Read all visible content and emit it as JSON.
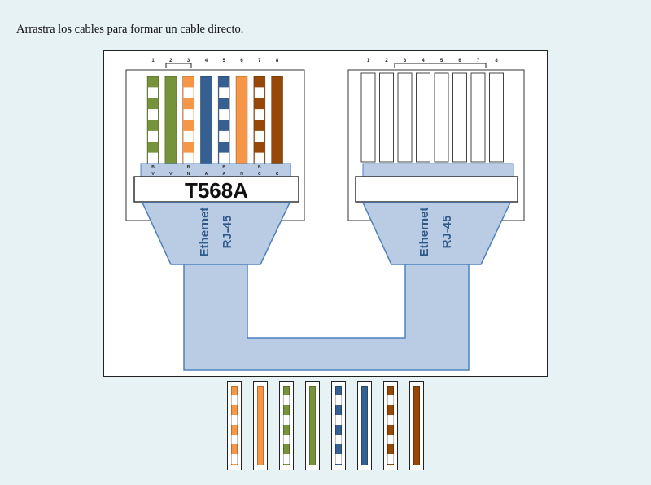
{
  "instruction": "Arrastra los cables para formar un cable directo.",
  "colors": {
    "green": "#76933c",
    "orange": "#f79646",
    "blue": "#366092",
    "brown": "#974806",
    "boot": "#b9cce4",
    "boot_edge": "#4f81bd"
  },
  "left_plug": {
    "pin_numbers": [
      "1",
      "2",
      "3",
      "4",
      "5",
      "6",
      "7",
      "8"
    ],
    "pin_letters_top": [
      "B",
      "",
      "B",
      "",
      "B",
      "",
      "B",
      ""
    ],
    "pin_letters_bottom": [
      "V",
      "V",
      "N",
      "A",
      "A",
      "N",
      "C",
      "C"
    ],
    "wires": [
      {
        "color": "green",
        "striped": true
      },
      {
        "color": "green",
        "striped": false
      },
      {
        "color": "orange",
        "striped": true
      },
      {
        "color": "blue",
        "striped": false
      },
      {
        "color": "blue",
        "striped": true
      },
      {
        "color": "orange",
        "striped": false
      },
      {
        "color": "brown",
        "striped": true
      },
      {
        "color": "brown",
        "striped": false
      }
    ],
    "standard_label": "T568A",
    "boot_line1": "Ethernet",
    "boot_line2": "RJ-45"
  },
  "right_plug": {
    "pin_numbers": [
      "1",
      "2",
      "3",
      "4",
      "5",
      "6",
      "7",
      "8"
    ],
    "boot_line1": "Ethernet",
    "boot_line2": "RJ-45"
  },
  "tray_wires": [
    {
      "color": "orange",
      "striped": true
    },
    {
      "color": "orange",
      "striped": false
    },
    {
      "color": "green",
      "striped": true
    },
    {
      "color": "green",
      "striped": false
    },
    {
      "color": "blue",
      "striped": true
    },
    {
      "color": "blue",
      "striped": false
    },
    {
      "color": "brown",
      "striped": true
    },
    {
      "color": "brown",
      "striped": false
    }
  ]
}
